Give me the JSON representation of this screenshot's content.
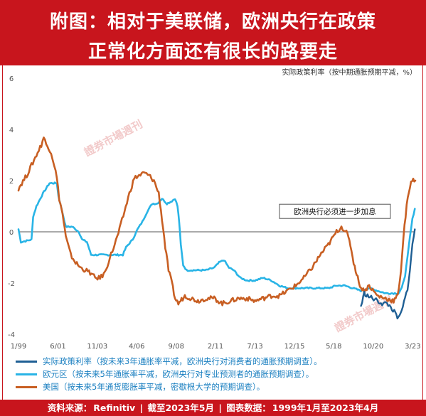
{
  "header": {
    "line1": "附图：相对于美联储，欧洲央行在政策",
    "line2": "正常化方面还有很长的路要走"
  },
  "footer": {
    "source_label": "资料来源：",
    "source": "Refinitiv",
    "cutoff_label": "截至2023年5月",
    "range_label": "图表数据：",
    "range": "1999年1月至2023年4月"
  },
  "watermark": "證券市場週刊",
  "colors": {
    "brand_red": "#c8151d",
    "real_policy_rate": "#1f5f94",
    "euro_area": "#29b4e6",
    "us": "#c85f23",
    "zero_line": "#555555",
    "axis_text": "#555555"
  },
  "chart_data": {
    "type": "line",
    "title": "实际政策利率（按中期通胀预期平减，%）",
    "xlabel": "",
    "ylabel": "",
    "ylim": [
      -4,
      6
    ],
    "yticks": [
      -4,
      -2,
      0,
      2,
      4,
      6
    ],
    "xlim": [
      1999.0,
      2023.33
    ],
    "xtick_labels": [
      "1/99",
      "6/01",
      "11/03",
      "4/06",
      "9/08",
      "2/11",
      "7/13",
      "12/15",
      "5/18",
      "10/20",
      "3/23"
    ],
    "xtick_values": [
      1999.0,
      2001.42,
      2003.83,
      2006.25,
      2008.67,
      2011.08,
      2013.5,
      2015.92,
      2018.33,
      2020.75,
      2023.17
    ],
    "grid": false,
    "annotation": "欧洲央行必须进一步加息",
    "annotation_anchor": [
      2018.4,
      0.8
    ],
    "legend_title": "实际政策利率（按未来3年通胀率平减，欧洲央行对消费者的通胀预期调查）。",
    "series": [
      {
        "name": "欧元区（按未来5年通胀率平减，欧洲央行对专业预测者的通胀预期调查）。",
        "color": "#29b4e6",
        "points": [
          [
            1999.0,
            0.1
          ],
          [
            1999.15,
            -0.4
          ],
          [
            1999.5,
            -0.35
          ],
          [
            1999.8,
            -0.3
          ],
          [
            1999.9,
            0.6
          ],
          [
            2000.1,
            1.0
          ],
          [
            2000.5,
            1.5
          ],
          [
            2000.9,
            1.9
          ],
          [
            2001.1,
            1.9
          ],
          [
            2001.35,
            1.9
          ],
          [
            2001.45,
            1.4
          ],
          [
            2001.6,
            1.0
          ],
          [
            2001.9,
            0.2
          ],
          [
            2002.3,
            0.2
          ],
          [
            2002.7,
            0.0
          ],
          [
            2002.9,
            -0.3
          ],
          [
            2003.2,
            -0.4
          ],
          [
            2003.45,
            -0.9
          ],
          [
            2004.0,
            -0.9
          ],
          [
            2004.5,
            -0.9
          ],
          [
            2005.0,
            -0.9
          ],
          [
            2005.4,
            -0.9
          ],
          [
            2005.6,
            -0.6
          ],
          [
            2006.0,
            -0.3
          ],
          [
            2006.3,
            0.1
          ],
          [
            2006.6,
            0.4
          ],
          [
            2006.9,
            0.8
          ],
          [
            2007.2,
            1.1
          ],
          [
            2007.5,
            1.1
          ],
          [
            2007.8,
            1.3
          ],
          [
            2008.1,
            1.1
          ],
          [
            2008.4,
            1.2
          ],
          [
            2008.6,
            1.3
          ],
          [
            2008.75,
            1.0
          ],
          [
            2008.85,
            0.4
          ],
          [
            2008.95,
            -0.5
          ],
          [
            2009.1,
            -1.3
          ],
          [
            2009.3,
            -1.5
          ],
          [
            2009.6,
            -1.5
          ],
          [
            2010.0,
            -1.5
          ],
          [
            2010.5,
            -1.5
          ],
          [
            2011.0,
            -1.4
          ],
          [
            2011.3,
            -1.2
          ],
          [
            2011.6,
            -1.1
          ],
          [
            2011.9,
            -1.4
          ],
          [
            2012.2,
            -1.5
          ],
          [
            2012.6,
            -1.8
          ],
          [
            2013.0,
            -1.9
          ],
          [
            2013.5,
            -1.9
          ],
          [
            2014.0,
            -1.8
          ],
          [
            2014.5,
            -1.9
          ],
          [
            2015.0,
            -2.1
          ],
          [
            2015.5,
            -2.2
          ],
          [
            2016.0,
            -2.2
          ],
          [
            2016.5,
            -2.2
          ],
          [
            2017.0,
            -2.2
          ],
          [
            2017.5,
            -2.2
          ],
          [
            2018.0,
            -2.2
          ],
          [
            2018.5,
            -2.1
          ],
          [
            2019.0,
            -2.1
          ],
          [
            2019.5,
            -2.2
          ],
          [
            2020.0,
            -2.3
          ],
          [
            2020.5,
            -2.2
          ],
          [
            2021.0,
            -2.3
          ],
          [
            2021.5,
            -2.4
          ],
          [
            2022.0,
            -2.4
          ],
          [
            2022.3,
            -2.4
          ],
          [
            2022.5,
            -2.2
          ],
          [
            2022.7,
            -1.7
          ],
          [
            2022.85,
            -1.0
          ],
          [
            2023.0,
            -0.2
          ],
          [
            2023.15,
            0.5
          ],
          [
            2023.3,
            0.9
          ]
        ]
      },
      {
        "name": "美国（按未来5年通货膨胀率平减，密歇根大学的预期调查）。",
        "color": "#c85f23",
        "points": [
          [
            1999.0,
            1.7
          ],
          [
            1999.2,
            1.9
          ],
          [
            1999.5,
            2.2
          ],
          [
            1999.8,
            2.6
          ],
          [
            2000.1,
            3.0
          ],
          [
            2000.4,
            3.4
          ],
          [
            2000.55,
            3.7
          ],
          [
            2000.7,
            3.4
          ],
          [
            2000.85,
            3.3
          ],
          [
            2001.0,
            3.1
          ],
          [
            2001.2,
            2.6
          ],
          [
            2001.35,
            2.1
          ],
          [
            2001.5,
            1.3
          ],
          [
            2001.7,
            0.7
          ],
          [
            2001.9,
            -0.2
          ],
          [
            2002.2,
            -0.9
          ],
          [
            2002.5,
            -1.2
          ],
          [
            2002.8,
            -1.4
          ],
          [
            2003.1,
            -1.5
          ],
          [
            2003.4,
            -1.6
          ],
          [
            2003.7,
            -1.8
          ],
          [
            2004.0,
            -1.8
          ],
          [
            2004.3,
            -1.6
          ],
          [
            2004.6,
            -1.0
          ],
          [
            2004.9,
            -0.5
          ],
          [
            2005.2,
            0.1
          ],
          [
            2005.5,
            0.8
          ],
          [
            2005.8,
            1.5
          ],
          [
            2006.1,
            2.1
          ],
          [
            2006.4,
            2.2
          ],
          [
            2006.7,
            2.3
          ],
          [
            2007.0,
            2.2
          ],
          [
            2007.3,
            2.0
          ],
          [
            2007.6,
            1.5
          ],
          [
            2007.8,
            0.5
          ],
          [
            2008.0,
            -0.6
          ],
          [
            2008.2,
            -1.5
          ],
          [
            2008.4,
            -2.0
          ],
          [
            2008.6,
            -2.6
          ],
          [
            2008.8,
            -2.8
          ],
          [
            2009.2,
            -2.5
          ],
          [
            2009.6,
            -2.6
          ],
          [
            2010.0,
            -2.7
          ],
          [
            2010.5,
            -2.6
          ],
          [
            2011.0,
            -2.6
          ],
          [
            2011.5,
            -2.8
          ],
          [
            2012.0,
            -2.7
          ],
          [
            2012.5,
            -2.6
          ],
          [
            2013.0,
            -2.6
          ],
          [
            2013.5,
            -2.7
          ],
          [
            2014.0,
            -2.6
          ],
          [
            2014.5,
            -2.5
          ],
          [
            2015.0,
            -2.5
          ],
          [
            2015.5,
            -2.3
          ],
          [
            2016.0,
            -2.1
          ],
          [
            2016.5,
            -1.8
          ],
          [
            2017.0,
            -1.4
          ],
          [
            2017.5,
            -0.9
          ],
          [
            2018.0,
            -0.5
          ],
          [
            2018.5,
            0.0
          ],
          [
            2018.8,
            0.2
          ],
          [
            2019.1,
            0.0
          ],
          [
            2019.35,
            -0.5
          ],
          [
            2019.55,
            -1.2
          ],
          [
            2019.8,
            -1.8
          ],
          [
            2020.0,
            -2.2
          ],
          [
            2020.2,
            -2.3
          ],
          [
            2020.5,
            -2.1
          ],
          [
            2021.0,
            -2.5
          ],
          [
            2021.5,
            -2.6
          ],
          [
            2022.0,
            -2.7
          ],
          [
            2022.25,
            -2.5
          ],
          [
            2022.45,
            -1.5
          ],
          [
            2022.6,
            -0.2
          ],
          [
            2022.8,
            1.0
          ],
          [
            2023.0,
            1.8
          ],
          [
            2023.2,
            2.1
          ],
          [
            2023.33,
            2.0
          ]
        ]
      },
      {
        "name": "实际政策利率（按未来3年通胀率平减，欧洲央行对消费者的通胀预期调查）。",
        "color": "#1f5f94",
        "points": [
          [
            2020.0,
            -2.9
          ],
          [
            2020.2,
            -2.4
          ],
          [
            2020.4,
            -2.5
          ],
          [
            2020.7,
            -2.6
          ],
          [
            2021.0,
            -2.7
          ],
          [
            2021.3,
            -2.8
          ],
          [
            2021.6,
            -2.8
          ],
          [
            2021.9,
            -3.0
          ],
          [
            2022.1,
            -3.2
          ],
          [
            2022.3,
            -3.4
          ],
          [
            2022.5,
            -3.1
          ],
          [
            2022.7,
            -2.6
          ],
          [
            2022.85,
            -2.2
          ],
          [
            2023.0,
            -1.5
          ],
          [
            2023.15,
            -0.5
          ],
          [
            2023.3,
            0.1
          ]
        ]
      }
    ]
  }
}
